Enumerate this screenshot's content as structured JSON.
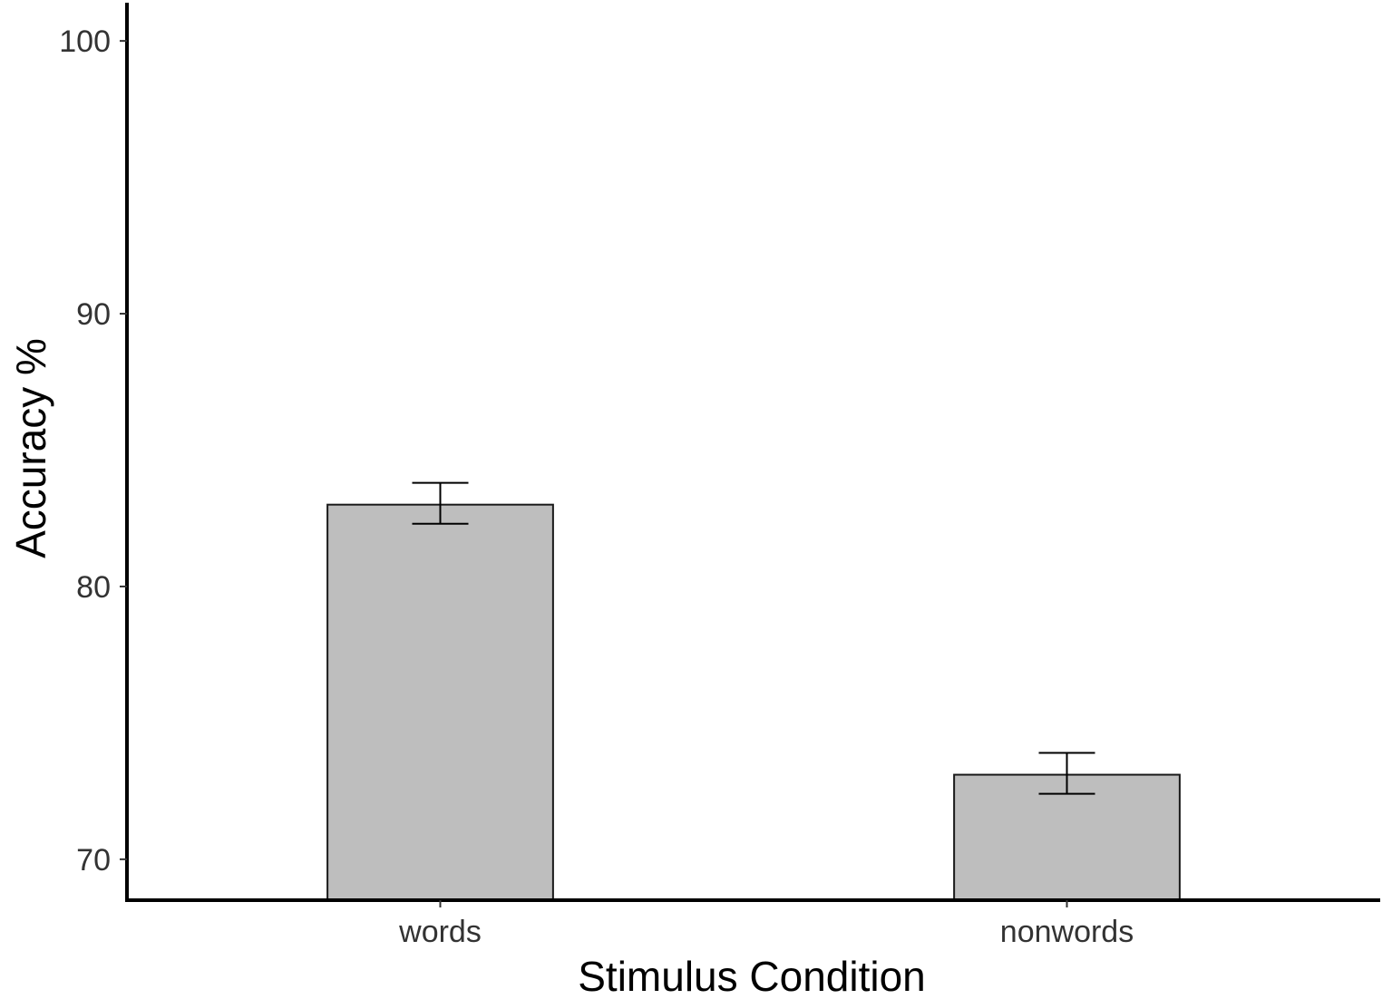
{
  "chart_data": {
    "type": "bar",
    "categories": [
      "words",
      "nonwords"
    ],
    "values": [
      83.0,
      73.1
    ],
    "error_low": [
      82.3,
      72.4
    ],
    "error_high": [
      83.8,
      73.9
    ],
    "xlabel": "Stimulus Condition",
    "ylabel": "Accuracy %",
    "ylim": [
      68.5,
      101.5
    ],
    "yticks": [
      70,
      80,
      90,
      100
    ],
    "grid": false,
    "legend": "none",
    "bar_color": "#bebebe",
    "bar_edge_color": "#1a1a1a",
    "axis_color": "#000000"
  }
}
